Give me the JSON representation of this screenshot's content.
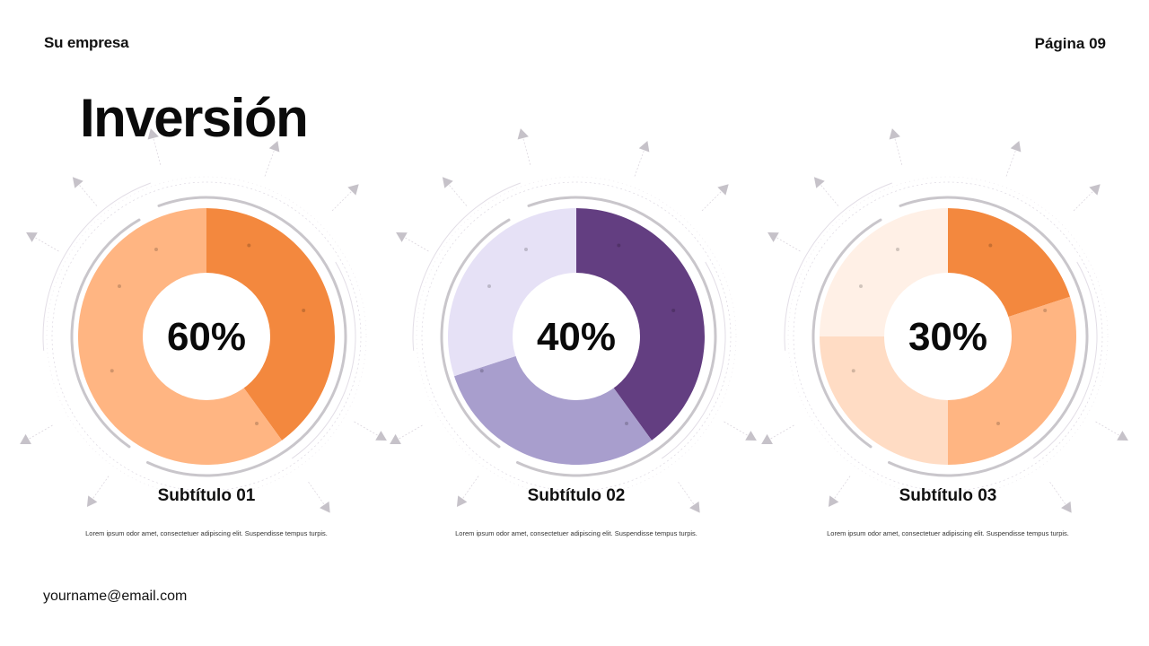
{
  "header": {
    "company": "Su empresa",
    "page": "Página 09"
  },
  "title": "Inversión",
  "footer": {
    "email": "yourname@email.com"
  },
  "chart_data": [
    {
      "type": "pie",
      "center_label": "60%",
      "slices": [
        {
          "value": 40,
          "color": "#F3883E"
        },
        {
          "value": 60,
          "color": "#FFB582"
        }
      ],
      "subtitle": "Subtítulo 01",
      "description": "Lorem ipsum odor amet, consectetuer adipiscing elit. Suspendisse tempus turpis."
    },
    {
      "type": "pie",
      "center_label": "40%",
      "slices": [
        {
          "value": 40,
          "color": "#633E81"
        },
        {
          "value": 30,
          "color": "#A89ECD"
        },
        {
          "value": 30,
          "color": "#E6E1F6"
        }
      ],
      "subtitle": "Subtítulo 02",
      "description": "Lorem ipsum odor amet, consectetuer adipiscing elit. Suspendisse tempus turpis."
    },
    {
      "type": "pie",
      "center_label": "30%",
      "slices": [
        {
          "value": 20,
          "color": "#F3883E"
        },
        {
          "value": 30,
          "color": "#FFB582"
        },
        {
          "value": 25,
          "color": "#FFDCC4"
        },
        {
          "value": 25,
          "color": "#FFF0E6"
        }
      ],
      "subtitle": "Subtítulo 03",
      "description": "Lorem ipsum odor amet, consectetuer adipiscing elit. Suspendisse tempus turpis."
    }
  ]
}
